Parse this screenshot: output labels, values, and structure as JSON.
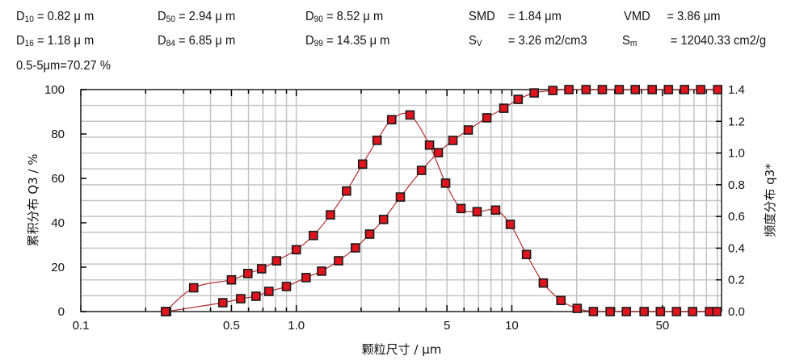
{
  "stats": [
    {
      "label": "D",
      "sub": "10",
      "value": "= 0.82 μ m"
    },
    {
      "label": "D",
      "sub": "50",
      "value": "= 2.94 μ m"
    },
    {
      "label": "D",
      "sub": "90",
      "value": "= 8.52 μ m"
    },
    {
      "label": "SMD",
      "sub": "",
      "value": "= 1.84 μm"
    },
    {
      "label": "VMD",
      "sub": "",
      "value": "= 3.86 μm"
    },
    {
      "label": "D",
      "sub": "16",
      "value": "= 1.18 μ m"
    },
    {
      "label": "D",
      "sub": "84",
      "value": "= 6.85 μ m"
    },
    {
      "label": "D",
      "sub": "99",
      "value": "= 14.35 μ m"
    },
    {
      "label": "S",
      "sub": "V",
      "value": "= 3.26 m2/cm3"
    },
    {
      "label": "S",
      "sub": "m",
      "value": "= 12040.33 cm2/g"
    },
    {
      "label": "0.5-5μm=70.27 %",
      "sub": "",
      "value": ""
    }
  ],
  "chart_data": {
    "type": "line",
    "xlabel": "颗粒尺寸 / μm",
    "ylabel": "累积分布 Q3 / %",
    "y2label": "频度分布 q3*",
    "xscale": "log",
    "xlim": [
      0.1,
      94
    ],
    "ylim": [
      0,
      100
    ],
    "y2lim": [
      0,
      1.4
    ],
    "grid": true,
    "x_ticks": [
      "0.1",
      "0.5",
      "1.0",
      "5",
      "10",
      "50"
    ],
    "x_tick_values": [
      0.1,
      0.5,
      1,
      5,
      10,
      50
    ],
    "y_ticks": [
      "0",
      "20",
      "40",
      "60",
      "80",
      "100"
    ],
    "y2_ticks": [
      "0.0",
      "0.2",
      "0.4",
      "0.6",
      "0.8",
      "1.0",
      "1.2",
      "1.4"
    ],
    "line_color": "#b03030",
    "marker_color": "#e0141c",
    "series": [
      {
        "axis": "left",
        "x": [
          0.25,
          0.456,
          0.552,
          0.65,
          0.746,
          0.9,
          1.11,
          1.31,
          1.57,
          1.88,
          2.19,
          2.54,
          3.04,
          3.81,
          4.56,
          5.33,
          6.28,
          7.66,
          9.18,
          10.7,
          12.7,
          15.5,
          18.4,
          22.1,
          26.3,
          31.5,
          37.4,
          44.8,
          53.3,
          63.3,
          75.2,
          90.2
        ],
        "y": [
          0,
          4.0,
          5.8,
          6.9,
          9.1,
          11.3,
          15.3,
          18.2,
          22.9,
          28.7,
          34.9,
          41.5,
          51.6,
          63.6,
          71.6,
          77.1,
          81.8,
          87.3,
          91.6,
          95.6,
          98.5,
          99.6,
          100,
          100,
          100,
          100,
          100,
          100,
          100,
          100,
          100,
          100
        ]
      },
      {
        "axis": "right",
        "x": [
          0.247,
          0.334,
          0.5,
          0.596,
          0.69,
          0.81,
          1.0,
          1.2,
          1.44,
          1.71,
          2.03,
          2.37,
          2.77,
          3.37,
          4.15,
          4.93,
          5.81,
          6.9,
          8.41,
          9.84,
          11.7,
          14.0,
          16.9,
          20.1,
          23.9,
          28.6,
          34.0,
          41.1,
          48.9,
          58.1,
          69.0,
          82.7,
          89.4
        ],
        "y": [
          0,
          0.15,
          0.2,
          0.24,
          0.27,
          0.32,
          0.39,
          0.48,
          0.61,
          0.76,
          0.93,
          1.08,
          1.21,
          1.24,
          1.05,
          0.81,
          0.65,
          0.63,
          0.64,
          0.55,
          0.36,
          0.18,
          0.07,
          0.02,
          0,
          0,
          0,
          0,
          0,
          0,
          0,
          0,
          0
        ]
      }
    ]
  }
}
